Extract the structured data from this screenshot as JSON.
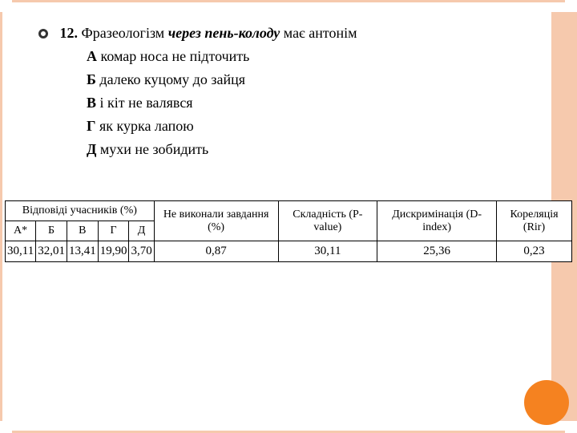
{
  "question": {
    "number": "12.",
    "prefix": "Фразеологізм ",
    "phrase": "через пень-колоду",
    "suffix": " має антонім",
    "options": [
      {
        "letter": "А",
        "text": "комар носа не підточить"
      },
      {
        "letter": "Б",
        "text": "далеко куцому до зайця"
      },
      {
        "letter": "В",
        "text": "і кіт не валявся"
      },
      {
        "letter": "Г",
        "text": "як курка лапою"
      },
      {
        "letter": "Д",
        "text": "мухи не зобидить"
      }
    ]
  },
  "table": {
    "group_header": "Відповіді учасників (%)",
    "columns_answers": [
      "А*",
      "Б",
      "В",
      "Г",
      "Д"
    ],
    "columns_metrics": [
      "Не виконали завдання (%)",
      "Складність (P-value)",
      "Дискримінація (D-index)",
      "Кореляція (Rir)"
    ],
    "row": {
      "answers": [
        "30,11",
        "32,01",
        "13,41",
        "19,90",
        "3,70"
      ],
      "metrics": [
        "0,87",
        "30,11",
        "25,36",
        "0,23"
      ]
    },
    "style": {
      "border_color": "#000000",
      "background_color": "#ffffff",
      "header_fontsize": 14,
      "cell_fontsize": 15,
      "font_family": "Times New Roman"
    }
  },
  "theme": {
    "frame_color": "#f6c9ad",
    "accent_circle_color": "#f58220",
    "body_fontsize": 18,
    "body_font_family": "Georgia"
  }
}
